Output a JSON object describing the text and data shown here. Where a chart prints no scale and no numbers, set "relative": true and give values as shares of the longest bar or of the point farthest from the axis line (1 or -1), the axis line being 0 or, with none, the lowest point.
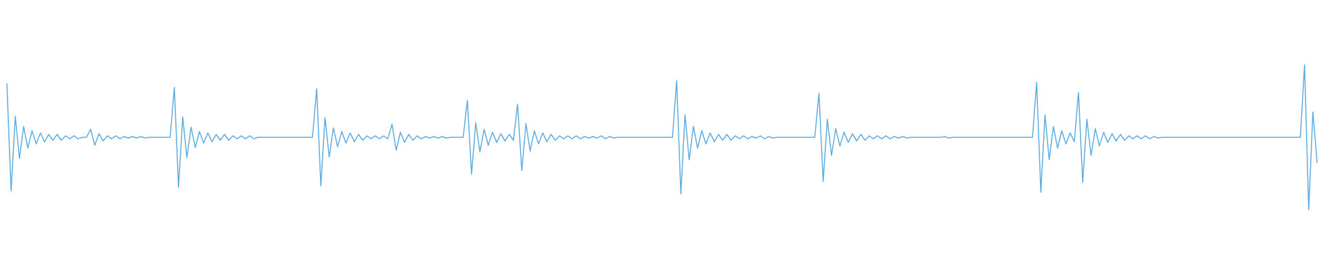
{
  "chart_data": {
    "type": "line",
    "relative": true,
    "color": "#5dade2",
    "categories": [
      null,
      null,
      null,
      null,
      null,
      null,
      null,
      null,
      null,
      null,
      null,
      null,
      null,
      null,
      null,
      null,
      null,
      null,
      null,
      null,
      null,
      null,
      null,
      null,
      null,
      null,
      null,
      null,
      null,
      null,
      null,
      null,
      null,
      null,
      null,
      null,
      null,
      null,
      null,
      null,
      null,
      null,
      null,
      null,
      null,
      null,
      null,
      null,
      null,
      null,
      null,
      null,
      null,
      null,
      null,
      null,
      null,
      null,
      null,
      null,
      null,
      null,
      null,
      null,
      null,
      null,
      null,
      null,
      null,
      null,
      null,
      null,
      null,
      null,
      null,
      null,
      null,
      null,
      null,
      null,
      null,
      null,
      null,
      null,
      null,
      null,
      null,
      null,
      null,
      null,
      null,
      null,
      null,
      null,
      null,
      null,
      null,
      null,
      null,
      null,
      null,
      null,
      null,
      null,
      null,
      null,
      null,
      null,
      null,
      null,
      null,
      null,
      null,
      null,
      null,
      null,
      null,
      null,
      null,
      null,
      null,
      null,
      null,
      null,
      null,
      null,
      null,
      null,
      null,
      null,
      null,
      null,
      null,
      null,
      null,
      null,
      null,
      null,
      null,
      null,
      null,
      null,
      null,
      null,
      null,
      null,
      null,
      null,
      null,
      null,
      null,
      null,
      null,
      null,
      null,
      null,
      null,
      null,
      null,
      null,
      null,
      null,
      null,
      null,
      null,
      null,
      null,
      null,
      null,
      null,
      null,
      null,
      null,
      null,
      null,
      null,
      null,
      null,
      null,
      null,
      null,
      null,
      null,
      null,
      null,
      null,
      null,
      null,
      null,
      null,
      null,
      null,
      null,
      null,
      null,
      null,
      null,
      null,
      null,
      null,
      null,
      null,
      null,
      null,
      null,
      null,
      null,
      null,
      null,
      null,
      null,
      null,
      null,
      null,
      null,
      null,
      null,
      null,
      null,
      null,
      null,
      null,
      null,
      null,
      null,
      null,
      null,
      null,
      null,
      null,
      null,
      null,
      null,
      null,
      null,
      null,
      null,
      null,
      null,
      null,
      null,
      null,
      null,
      null,
      null,
      null,
      null,
      null,
      null,
      null,
      null,
      null,
      null,
      null,
      null,
      null,
      null,
      null,
      null,
      null,
      null,
      null,
      null,
      null,
      null,
      null,
      null,
      null,
      null,
      null,
      null,
      null,
      null,
      null,
      null,
      null,
      null,
      null,
      null,
      null,
      null,
      null,
      null,
      null,
      null,
      null,
      null,
      null,
      null,
      null,
      null,
      null,
      null,
      null,
      null,
      null,
      null,
      null,
      null,
      null,
      null,
      null,
      null,
      null,
      null,
      null,
      null,
      null,
      null,
      null,
      null,
      null,
      null,
      null
    ],
    "values": [
      0.87,
      0.13,
      0.645,
      0.355,
      0.575,
      0.425,
      0.545,
      0.455,
      0.53,
      0.47,
      0.52,
      0.48,
      0.52,
      0.48,
      0.51,
      0.49,
      0.51,
      0.49,
      0.5,
      0.5,
      0.555,
      0.445,
      0.525,
      0.475,
      0.51,
      0.49,
      0.51,
      0.49,
      0.505,
      0.495,
      0.505,
      0.495,
      0.505,
      0.495,
      0.5,
      0.5,
      0.5,
      0.5,
      0.5,
      0.5,
      0.845,
      0.155,
      0.64,
      0.36,
      0.57,
      0.43,
      0.54,
      0.46,
      0.53,
      0.47,
      0.52,
      0.48,
      0.52,
      0.48,
      0.51,
      0.49,
      0.51,
      0.49,
      0.51,
      0.49,
      0.5,
      0.5,
      0.5,
      0.5,
      0.5,
      0.5,
      0.5,
      0.5,
      0.5,
      0.5,
      0.5,
      0.5,
      0.5,
      0.5,
      0.835,
      0.165,
      0.635,
      0.365,
      0.565,
      0.435,
      0.54,
      0.46,
      0.53,
      0.47,
      0.52,
      0.48,
      0.51,
      0.49,
      0.51,
      0.49,
      0.51,
      0.49,
      0.59,
      0.41,
      0.535,
      0.465,
      0.52,
      0.48,
      0.51,
      0.49,
      0.505,
      0.495,
      0.505,
      0.495,
      0.505,
      0.495,
      0.5,
      0.5,
      0.5,
      0.5,
      0.755,
      0.245,
      0.6,
      0.4,
      0.555,
      0.445,
      0.535,
      0.465,
      0.525,
      0.475,
      0.52,
      0.48,
      0.73,
      0.27,
      0.595,
      0.405,
      0.545,
      0.455,
      0.53,
      0.47,
      0.52,
      0.48,
      0.51,
      0.49,
      0.51,
      0.49,
      0.51,
      0.49,
      0.505,
      0.495,
      0.505,
      0.495,
      0.51,
      0.49,
      0.505,
      0.495,
      0.5,
      0.5,
      0.5,
      0.5,
      0.5,
      0.5,
      0.5,
      0.5,
      0.5,
      0.5,
      0.5,
      0.5,
      0.5,
      0.5,
      0.89,
      0.11,
      0.655,
      0.345,
      0.575,
      0.425,
      0.545,
      0.455,
      0.53,
      0.47,
      0.52,
      0.48,
      0.52,
      0.48,
      0.51,
      0.49,
      0.51,
      0.49,
      0.505,
      0.495,
      0.51,
      0.49,
      0.505,
      0.495,
      0.5,
      0.5,
      0.5,
      0.5,
      0.5,
      0.5,
      0.5,
      0.5,
      0.5,
      0.5,
      0.805,
      0.195,
      0.625,
      0.375,
      0.56,
      0.44,
      0.535,
      0.465,
      0.525,
      0.475,
      0.52,
      0.48,
      0.51,
      0.49,
      0.51,
      0.49,
      0.51,
      0.49,
      0.505,
      0.495,
      0.505,
      0.495,
      0.5,
      0.5,
      0.5,
      0.5,
      0.5,
      0.5,
      0.5,
      0.5,
      0.505,
      0.495,
      0.5,
      0.5,
      0.5,
      0.5,
      0.5,
      0.5,
      0.5,
      0.5,
      0.5,
      0.5,
      0.5,
      0.5,
      0.5,
      0.5,
      0.5,
      0.5,
      0.5,
      0.5,
      0.5,
      0.5,
      0.88,
      0.12,
      0.655,
      0.345,
      0.575,
      0.425,
      0.545,
      0.455,
      0.53,
      0.47,
      0.81,
      0.19,
      0.625,
      0.375,
      0.56,
      0.44,
      0.535,
      0.465,
      0.525,
      0.475,
      0.52,
      0.48,
      0.51,
      0.49,
      0.51,
      0.49,
      0.51,
      0.49,
      0.505,
      0.495,
      0.5,
      0.5,
      0.5,
      0.5,
      0.5,
      0.5,
      0.5,
      0.5,
      0.5,
      0.5,
      0.5,
      0.5,
      0.5,
      0.5,
      0.5,
      0.5,
      0.5,
      0.5,
      0.5,
      0.5,
      0.5,
      0.5,
      0.5,
      0.5,
      0.5,
      0.5,
      0.5,
      0.5,
      0.5,
      0.5,
      0.5,
      0.5,
      0.5,
      0.5,
      1,
      0,
      0.675,
      0.325
    ]
  }
}
